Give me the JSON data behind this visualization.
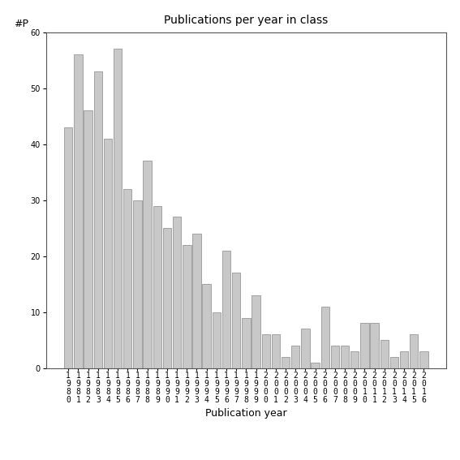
{
  "title": "Publications per year in class",
  "xlabel": "Publication year",
  "ylabel_text": "#P",
  "years": [
    "1980",
    "1981",
    "1982",
    "1983",
    "1984",
    "1985",
    "1986",
    "1987",
    "1988",
    "1989",
    "1990",
    "1991",
    "1992",
    "1993",
    "1994",
    "1995",
    "1996",
    "1997",
    "1998",
    "1999",
    "2000",
    "2001",
    "2002",
    "2003",
    "2004",
    "2005",
    "2006",
    "2007",
    "2008",
    "2009",
    "2010",
    "2011",
    "2012",
    "2013",
    "2014",
    "2015",
    "2016"
  ],
  "values": [
    43,
    56,
    46,
    53,
    41,
    57,
    32,
    30,
    37,
    29,
    25,
    27,
    22,
    24,
    15,
    10,
    21,
    17,
    9,
    13,
    6,
    6,
    2,
    4,
    7,
    1,
    11,
    4,
    4,
    3,
    8,
    8,
    5,
    2,
    3,
    6,
    3
  ],
  "bar_color": "#c8c8c8",
  "bar_edge_color": "#888888",
  "ylim": [
    0,
    60
  ],
  "yticks": [
    0,
    10,
    20,
    30,
    40,
    50,
    60
  ],
  "background_color": "#ffffff",
  "title_fontsize": 10,
  "label_fontsize": 9,
  "tick_fontsize": 7,
  "ylabel_fontsize": 9
}
